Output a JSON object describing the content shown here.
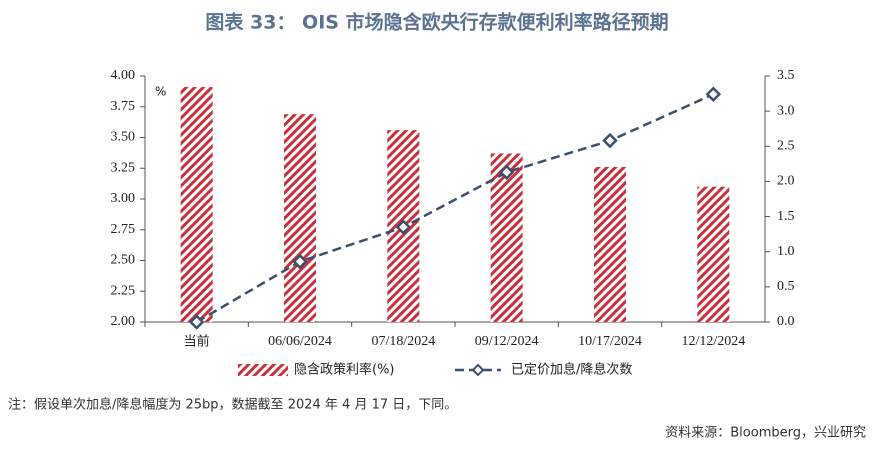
{
  "chart_data": {
    "type": "combo",
    "title": "图表 33： OIS 市场隐含欧央行存款便利利率路径预期",
    "y_unit": "%",
    "categories": [
      "当前",
      "06/06/2024",
      "07/18/2024",
      "09/12/2024",
      "10/17/2024",
      "12/12/2024"
    ],
    "series": [
      {
        "name": "隐含政策利率(%)",
        "type": "bar",
        "color": "#c8313b",
        "values": [
          3.91,
          3.69,
          3.56,
          3.37,
          3.26,
          3.1
        ]
      },
      {
        "name": "已定价加息/降息次数",
        "type": "line",
        "axis": "y2",
        "color": "#3d4f6e",
        "values": [
          0,
          0.86,
          1.35,
          2.13,
          2.58,
          3.24
        ]
      }
    ],
    "ylim": [
      2,
      4
    ],
    "yticks": [
      {
        "value": 2,
        "label": "2.00"
      },
      {
        "value": 2.25,
        "label": "2.25"
      },
      {
        "value": 2.5,
        "label": "2.50"
      },
      {
        "value": 2.75,
        "label": "2.75"
      },
      {
        "value": 3,
        "label": "3.00"
      },
      {
        "value": 3.25,
        "label": "3.25"
      },
      {
        "value": 3.5,
        "label": "3.50"
      },
      {
        "value": 3.75,
        "label": "3.75"
      },
      {
        "value": 4,
        "label": "4.00"
      }
    ],
    "y2lim": [
      0,
      3.5
    ],
    "y2ticks": [
      {
        "value": 0,
        "label": "0.0"
      },
      0.5,
      {
        "value": 1,
        "label": "1.0"
      },
      1.5,
      {
        "value": 2,
        "label": "2.0"
      },
      2.5,
      {
        "value": 3,
        "label": "3.0"
      },
      3.5
    ],
    "note": "注：假设单次加息/降息幅度为 25bp，数据截至 2024 年 4 月 17 日，下同。",
    "source": "资料来源：Bloomberg，兴业研究"
  }
}
